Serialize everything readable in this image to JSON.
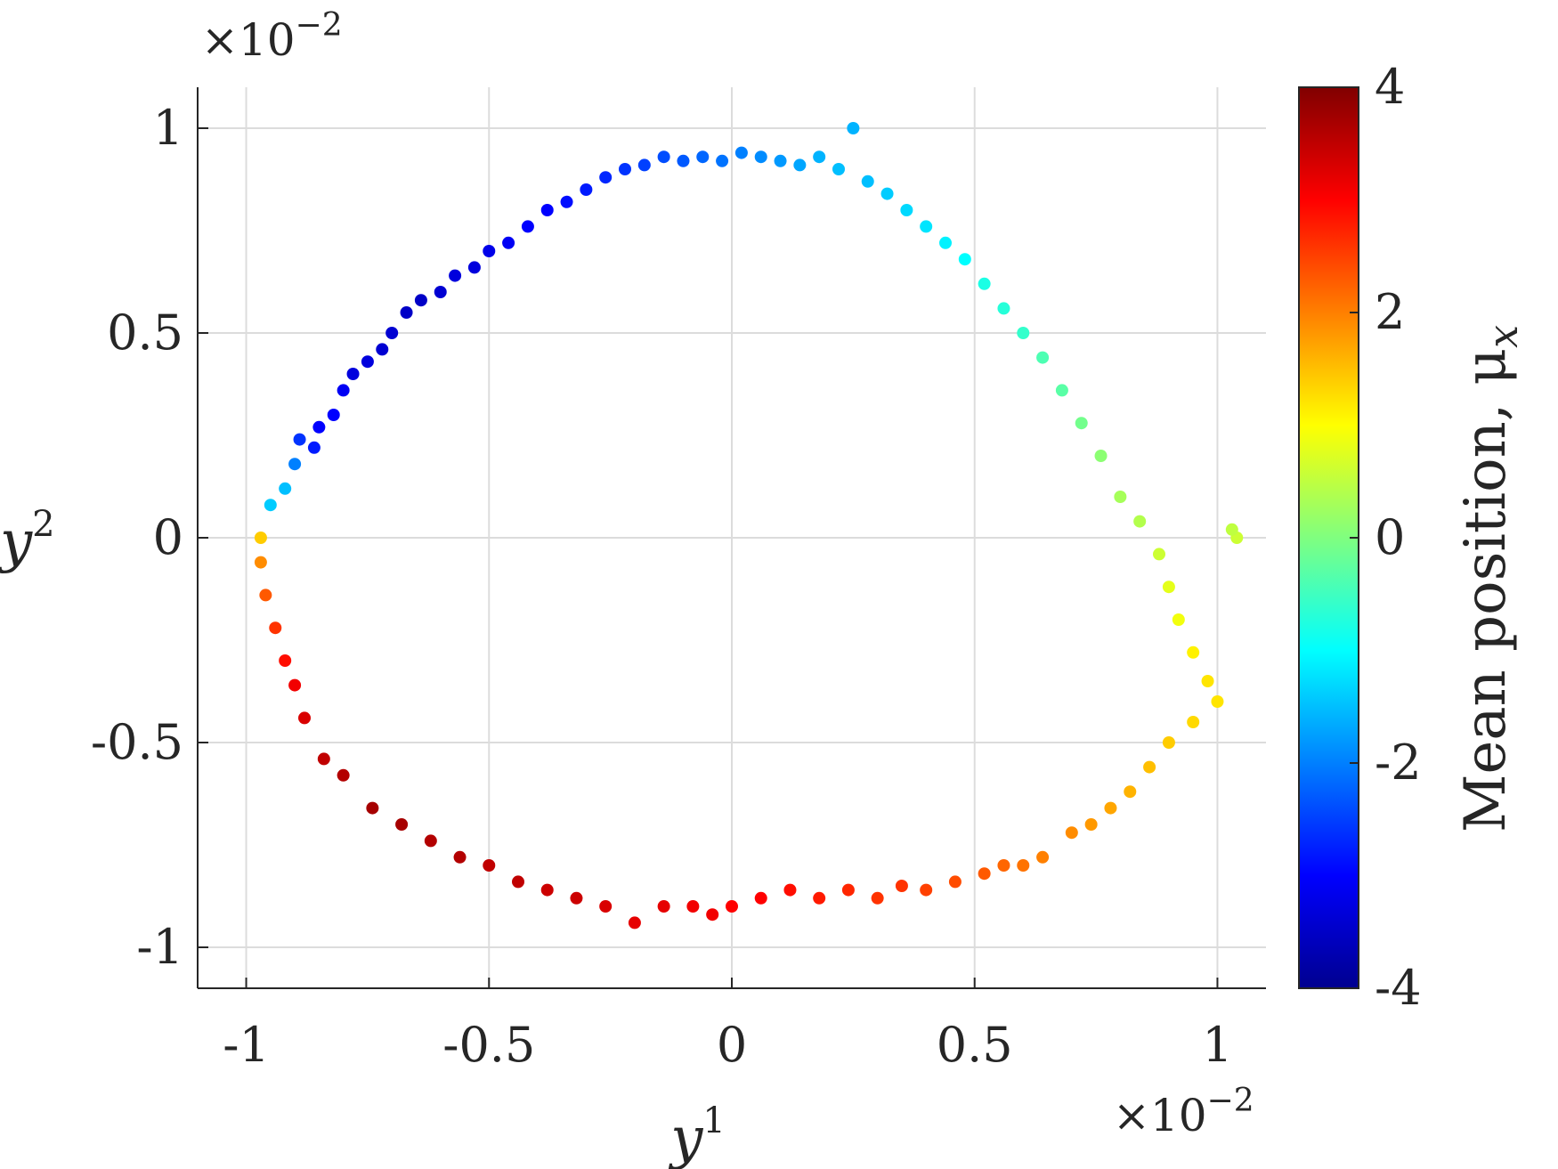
{
  "chart_data": {
    "type": "scatter",
    "title": "",
    "xlabel": "y",
    "xlabel_superscript": "1",
    "ylabel": "y",
    "ylabel_superscript": "2",
    "x_exponent_label": "×10",
    "x_exponent_power": "−2",
    "y_exponent_label": "×10",
    "y_exponent_power": "−2",
    "xlim": [
      -1.1,
      1.1
    ],
    "ylim": [
      -1.1,
      1.1
    ],
    "xticks": [
      -1,
      -0.5,
      0,
      0.5,
      1
    ],
    "xtick_labels": [
      "-1",
      "-0.5",
      "0",
      "0.5",
      "1"
    ],
    "yticks": [
      -1,
      -0.5,
      0,
      0.5,
      1
    ],
    "ytick_labels": [
      "-1",
      "-0.5",
      "0",
      "0.5",
      "1"
    ],
    "grid": true,
    "colormap": "jet",
    "colorbar": {
      "label": "Mean position, μ",
      "label_subscript": "x",
      "range": [
        -4,
        4
      ],
      "ticks": [
        -4,
        -2,
        0,
        2,
        4
      ],
      "tick_labels": [
        "-4",
        "-2",
        "0",
        "2",
        "4"
      ]
    },
    "series": [
      {
        "color_variable": "Mean position",
        "points": [
          [
            -0.95,
            0.08,
            -1.4
          ],
          [
            -0.92,
            0.12,
            -1.5
          ],
          [
            -0.9,
            0.18,
            -2.0
          ],
          [
            -0.89,
            0.24,
            -2.6
          ],
          [
            -0.86,
            0.22,
            -2.8
          ],
          [
            -0.85,
            0.27,
            -3.0
          ],
          [
            -0.82,
            0.3,
            -3.0
          ],
          [
            -0.8,
            0.36,
            -3.1
          ],
          [
            -0.78,
            0.4,
            -3.3
          ],
          [
            -0.75,
            0.43,
            -3.3
          ],
          [
            -0.72,
            0.46,
            -3.4
          ],
          [
            -0.7,
            0.5,
            -3.4
          ],
          [
            -0.67,
            0.55,
            -3.5
          ],
          [
            -0.64,
            0.58,
            -3.5
          ],
          [
            -0.6,
            0.6,
            -3.4
          ],
          [
            -0.57,
            0.64,
            -3.3
          ],
          [
            -0.53,
            0.66,
            -3.3
          ],
          [
            -0.5,
            0.7,
            -3.2
          ],
          [
            -0.46,
            0.72,
            -3.1
          ],
          [
            -0.42,
            0.76,
            -3.0
          ],
          [
            -0.38,
            0.8,
            -3.0
          ],
          [
            -0.34,
            0.82,
            -2.9
          ],
          [
            -0.3,
            0.85,
            -2.8
          ],
          [
            -0.26,
            0.88,
            -2.7
          ],
          [
            -0.22,
            0.9,
            -2.6
          ],
          [
            -0.18,
            0.91,
            -2.5
          ],
          [
            -0.14,
            0.93,
            -2.4
          ],
          [
            -0.1,
            0.92,
            -2.3
          ],
          [
            -0.06,
            0.93,
            -2.2
          ],
          [
            -0.02,
            0.92,
            -2.1
          ],
          [
            0.02,
            0.94,
            -2.0
          ],
          [
            0.06,
            0.93,
            -1.9
          ],
          [
            0.1,
            0.92,
            -1.8
          ],
          [
            0.14,
            0.91,
            -1.7
          ],
          [
            0.18,
            0.93,
            -1.6
          ],
          [
            0.22,
            0.9,
            -1.5
          ],
          [
            0.25,
            1.0,
            -1.6
          ],
          [
            0.28,
            0.87,
            -1.5
          ],
          [
            0.32,
            0.84,
            -1.4
          ],
          [
            0.36,
            0.8,
            -1.3
          ],
          [
            0.4,
            0.76,
            -1.2
          ],
          [
            0.44,
            0.72,
            -1.1
          ],
          [
            0.48,
            0.68,
            -1.0
          ],
          [
            0.52,
            0.62,
            -0.8
          ],
          [
            0.56,
            0.56,
            -0.7
          ],
          [
            0.6,
            0.5,
            -0.6
          ],
          [
            0.64,
            0.44,
            -0.4
          ],
          [
            0.68,
            0.36,
            -0.3
          ],
          [
            0.72,
            0.28,
            -0.1
          ],
          [
            0.76,
            0.2,
            0.1
          ],
          [
            0.8,
            0.1,
            0.3
          ],
          [
            0.84,
            0.04,
            0.4
          ],
          [
            0.88,
            -0.04,
            0.6
          ],
          [
            0.9,
            -0.12,
            0.8
          ],
          [
            0.92,
            -0.2,
            0.9
          ],
          [
            0.95,
            -0.28,
            1.1
          ],
          [
            0.98,
            -0.35,
            1.2
          ],
          [
            1.0,
            -0.4,
            1.2
          ],
          [
            1.04,
            0.0,
            0.6
          ],
          [
            1.03,
            0.02,
            0.5
          ],
          [
            0.95,
            -0.45,
            1.3
          ],
          [
            0.9,
            -0.5,
            1.4
          ],
          [
            0.86,
            -0.56,
            1.5
          ],
          [
            0.82,
            -0.62,
            1.6
          ],
          [
            0.78,
            -0.66,
            1.7
          ],
          [
            0.74,
            -0.7,
            1.8
          ],
          [
            0.7,
            -0.72,
            1.9
          ],
          [
            0.64,
            -0.78,
            2.0
          ],
          [
            0.6,
            -0.8,
            2.1
          ],
          [
            0.56,
            -0.8,
            2.2
          ],
          [
            0.52,
            -0.82,
            2.3
          ],
          [
            0.46,
            -0.84,
            2.4
          ],
          [
            0.4,
            -0.86,
            2.5
          ],
          [
            0.35,
            -0.85,
            2.6
          ],
          [
            0.3,
            -0.88,
            2.6
          ],
          [
            0.24,
            -0.86,
            2.7
          ],
          [
            0.18,
            -0.88,
            2.8
          ],
          [
            0.12,
            -0.86,
            2.9
          ],
          [
            0.06,
            -0.88,
            3.0
          ],
          [
            0.0,
            -0.9,
            3.0
          ],
          [
            -0.04,
            -0.92,
            3.1
          ],
          [
            -0.08,
            -0.9,
            3.1
          ],
          [
            -0.14,
            -0.9,
            3.2
          ],
          [
            -0.2,
            -0.94,
            3.2
          ],
          [
            -0.26,
            -0.9,
            3.3
          ],
          [
            -0.32,
            -0.88,
            3.4
          ],
          [
            -0.38,
            -0.86,
            3.4
          ],
          [
            -0.44,
            -0.84,
            3.5
          ],
          [
            -0.5,
            -0.8,
            3.5
          ],
          [
            -0.56,
            -0.78,
            3.6
          ],
          [
            -0.62,
            -0.74,
            3.6
          ],
          [
            -0.68,
            -0.7,
            3.7
          ],
          [
            -0.74,
            -0.66,
            3.7
          ],
          [
            -0.8,
            -0.58,
            3.6
          ],
          [
            -0.84,
            -0.54,
            3.5
          ],
          [
            -0.88,
            -0.44,
            3.3
          ],
          [
            -0.9,
            -0.36,
            3.1
          ],
          [
            -0.92,
            -0.3,
            2.9
          ],
          [
            -0.94,
            -0.22,
            2.6
          ],
          [
            -0.96,
            -0.14,
            2.3
          ],
          [
            -0.97,
            -0.06,
            1.9
          ],
          [
            -0.97,
            0.0,
            1.4
          ]
        ]
      }
    ]
  }
}
